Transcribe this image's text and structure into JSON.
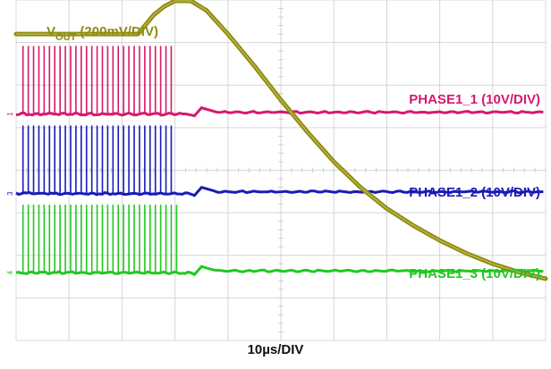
{
  "chart_data": {
    "type": "line",
    "timebase": "10µs/DIV",
    "divisions": {
      "x": 10,
      "y": 8
    },
    "grid": true,
    "transition_x": 3.3,
    "series": [
      {
        "name": "V",
        "name_sub": "OUT",
        "scale": " (200mV/DIV)",
        "color": "#8f8d10",
        "x": [
          0,
          2.3,
          2.4,
          2.6,
          2.8,
          3.0,
          3.3,
          3.6,
          4.0,
          4.5,
          5.0,
          5.5,
          6.0,
          6.5,
          7.0,
          7.5,
          8.0,
          8.5,
          9.0,
          9.5,
          10.0
        ],
        "y": [
          7.2,
          7.2,
          7.35,
          7.65,
          7.85,
          7.98,
          7.98,
          7.75,
          7.2,
          6.45,
          5.65,
          4.9,
          4.2,
          3.6,
          3.1,
          2.7,
          2.35,
          2.05,
          1.8,
          1.6,
          1.45
        ]
      },
      {
        "name": "PHASE1_1 (10V/DIV)",
        "color": "#d6196e",
        "baseline_y": 5.32,
        "pulse_height": 1.6,
        "pulse_start_x": 0.13,
        "pulse_period": 0.1,
        "pulse_count": 29,
        "channel_tag": "1"
      },
      {
        "name": "PHASE1_2 (10V/DIV)",
        "color": "#1a1ab8",
        "baseline_y": 3.45,
        "pulse_height": 1.6,
        "pulse_start_x": 0.13,
        "pulse_period": 0.1,
        "pulse_count": 29,
        "channel_tag": "3"
      },
      {
        "name": "PHASE1_3 (10V/DIV)",
        "color": "#22c81e",
        "baseline_y": 1.59,
        "pulse_height": 1.6,
        "pulse_start_x": 0.13,
        "pulse_period": 0.1,
        "pulse_count": 30,
        "channel_tag": "4"
      }
    ]
  }
}
